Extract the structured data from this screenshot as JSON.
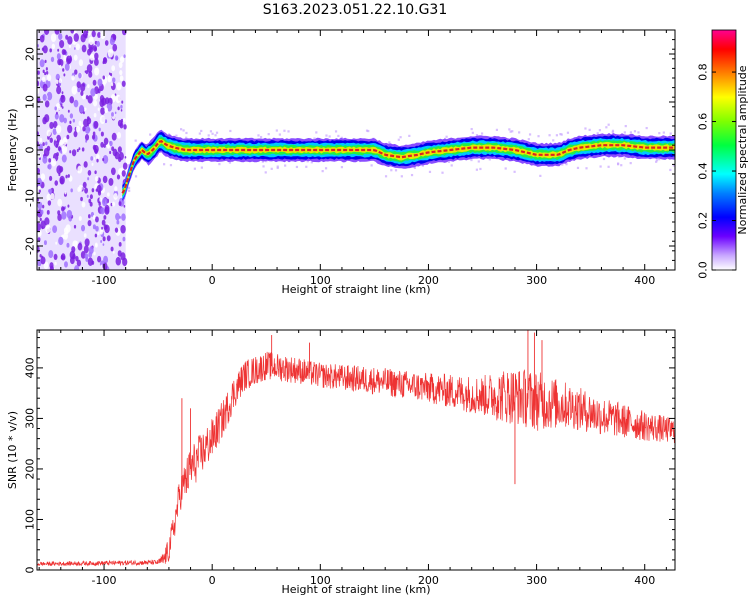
{
  "title": "S163.2023.051.22.10.G31",
  "colors": {
    "snr_line": "#ee3333",
    "ridge_core": "#dd2222",
    "noise_cloud": "#7a1fe0",
    "axis": "#000000"
  },
  "chart_data": [
    {
      "type": "heatmap",
      "name": "spectrogram",
      "xlabel": "Height of straight line (km)",
      "ylabel": "Frequency (Hz)",
      "xlim": [
        -162,
        428
      ],
      "ylim": [
        -25,
        25
      ],
      "xticks": [
        -100,
        0,
        100,
        200,
        300,
        400
      ],
      "xtick_labels": [
        "-100",
        "0",
        "100",
        "200",
        "300",
        "400"
      ],
      "yticks": [
        -20,
        -10,
        0,
        10,
        20
      ],
      "ytick_labels": [
        "-20",
        "-10",
        "0",
        "10",
        "20"
      ],
      "grid": false,
      "noise_region_x": [
        -162,
        -80
      ],
      "ridge_frequency": {
        "x": [
          -82,
          -78,
          -72,
          -65,
          -60,
          -55,
          -48,
          -42,
          -35,
          -25,
          0,
          50,
          100,
          150,
          160,
          175,
          190,
          200,
          220,
          240,
          260,
          280,
          300,
          320,
          330,
          340,
          360,
          380,
          400,
          428
        ],
        "y": [
          -9,
          -6,
          -2,
          0,
          -1,
          0,
          2,
          1,
          0.5,
          0,
          0,
          0,
          0,
          0,
          -1,
          -1.5,
          -1,
          -0.5,
          0,
          0.5,
          0.5,
          0,
          -1,
          -1,
          0,
          0.5,
          1,
          1,
          0.5,
          0.5
        ]
      },
      "colorbar": {
        "label": "Normalized spectral amplitude",
        "ticks": [
          "0.0",
          "0.2",
          "0.4",
          "0.6",
          "0.8"
        ],
        "tick_values": [
          0.0,
          0.2,
          0.4,
          0.6,
          0.8
        ],
        "range": [
          0,
          0.97
        ]
      }
    },
    {
      "type": "line",
      "name": "snr",
      "xlabel": "Height of straight line (km)",
      "ylabel": "SNR (10 * v/v)",
      "xlim": [
        -162,
        428
      ],
      "ylim": [
        0,
        475
      ],
      "xticks": [
        -100,
        0,
        100,
        200,
        300,
        400
      ],
      "xtick_labels": [
        "-100",
        "0",
        "100",
        "200",
        "300",
        "400"
      ],
      "yticks": [
        0,
        100,
        200,
        300,
        400
      ],
      "ytick_labels": [
        "0",
        "100",
        "200",
        "300",
        "400"
      ],
      "grid": false,
      "envelope": {
        "x": [
          -162,
          -50,
          -45,
          -40,
          -35,
          -30,
          -20,
          -10,
          0,
          10,
          20,
          30,
          50,
          80,
          100,
          150,
          200,
          250,
          280,
          300,
          330,
          360,
          400,
          428
        ],
        "y": [
          12,
          15,
          20,
          40,
          90,
          150,
          200,
          230,
          260,
          300,
          350,
          385,
          405,
          395,
          385,
          375,
          360,
          345,
          345,
          335,
          325,
          305,
          285,
          275
        ]
      },
      "noise_amplitude": {
        "x": [
          -162,
          -50,
          -40,
          -20,
          0,
          30,
          100,
          200,
          250,
          270,
          300,
          330,
          400,
          428
        ],
        "y": [
          4,
          5,
          25,
          45,
          40,
          30,
          25,
          30,
          40,
          55,
          60,
          45,
          30,
          25
        ]
      },
      "spikes": {
        "x": [
          -42,
          -28,
          -20,
          55,
          90,
          280,
          292,
          298,
          305
        ],
        "y": [
          50,
          340,
          320,
          465,
          450,
          170,
          475,
          470,
          455
        ]
      }
    }
  ]
}
